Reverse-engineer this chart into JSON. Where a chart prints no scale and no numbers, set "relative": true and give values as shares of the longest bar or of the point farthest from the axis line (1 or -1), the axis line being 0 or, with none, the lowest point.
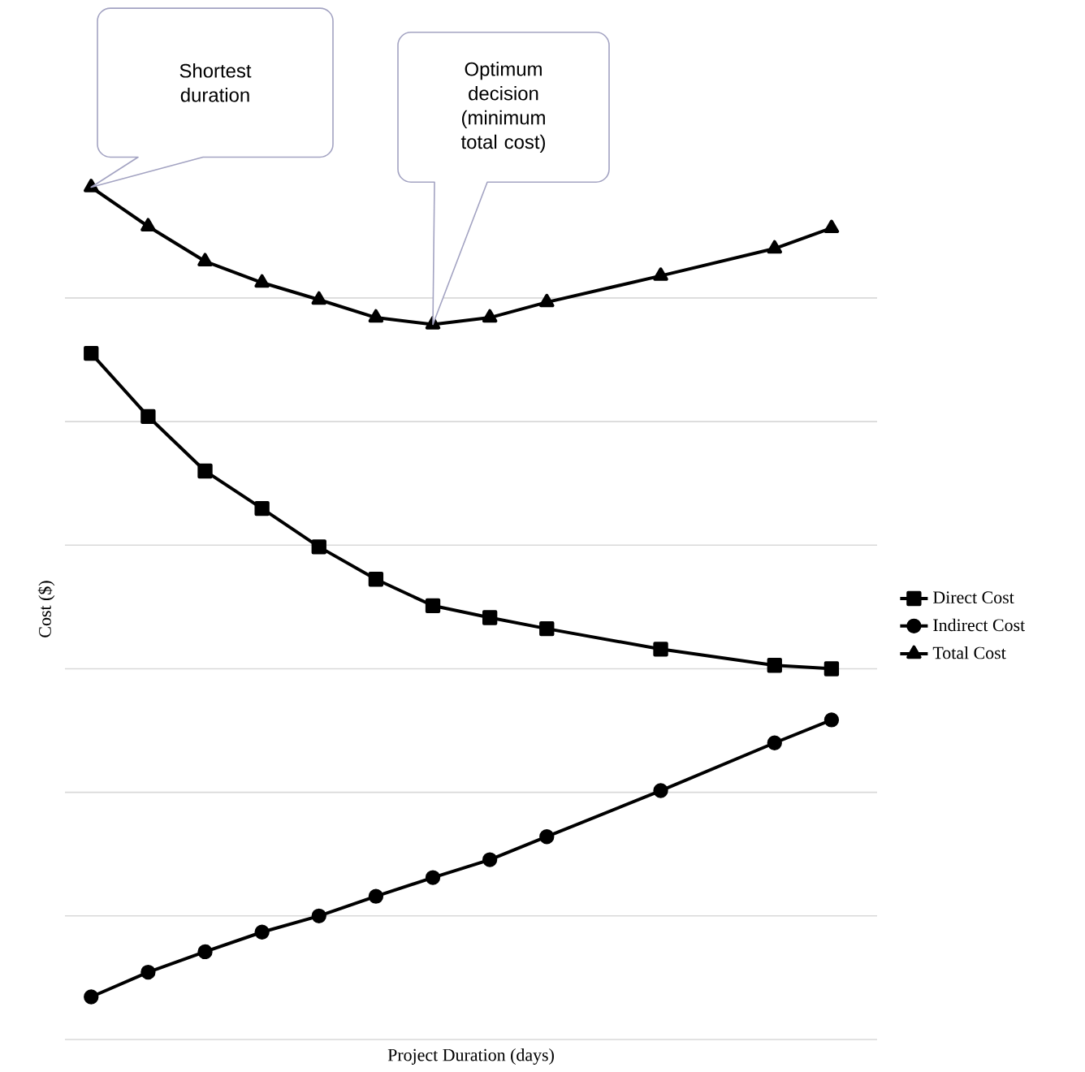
{
  "chart_data": {
    "type": "line",
    "relative": true,
    "xlabel": "Project Duration (days)",
    "ylabel": "Cost ($)",
    "categories": [
      null,
      null,
      null,
      null,
      null,
      null,
      null,
      null,
      null,
      null,
      null,
      null,
      null,
      null
    ],
    "series": [
      {
        "name": "Direct Cost",
        "color": "#000000",
        "marker": "square",
        "values": [
          0.805,
          0.731,
          0.667,
          0.623,
          0.578,
          0.54,
          0.509,
          0.495,
          0.482,
          null,
          0.458,
          null,
          0.439,
          0.435
        ]
      },
      {
        "name": "Indirect Cost",
        "color": "#000000",
        "marker": "circle",
        "values": [
          0.05,
          0.079,
          0.103,
          0.126,
          0.145,
          0.168,
          0.19,
          0.211,
          0.238,
          null,
          0.292,
          null,
          0.348,
          0.375
        ]
      },
      {
        "name": "Total Cost",
        "color": "#000000",
        "marker": "triangle",
        "values": [
          1.0,
          0.954,
          0.913,
          0.888,
          0.868,
          0.847,
          0.839,
          0.847,
          0.865,
          null,
          0.896,
          null,
          0.928,
          0.952
        ]
      }
    ],
    "annotations": [
      "Shortest duration",
      "Optimum decision (minimum total cost)"
    ],
    "grid": "y",
    "legend": "right",
    "line_style": "solid"
  }
}
